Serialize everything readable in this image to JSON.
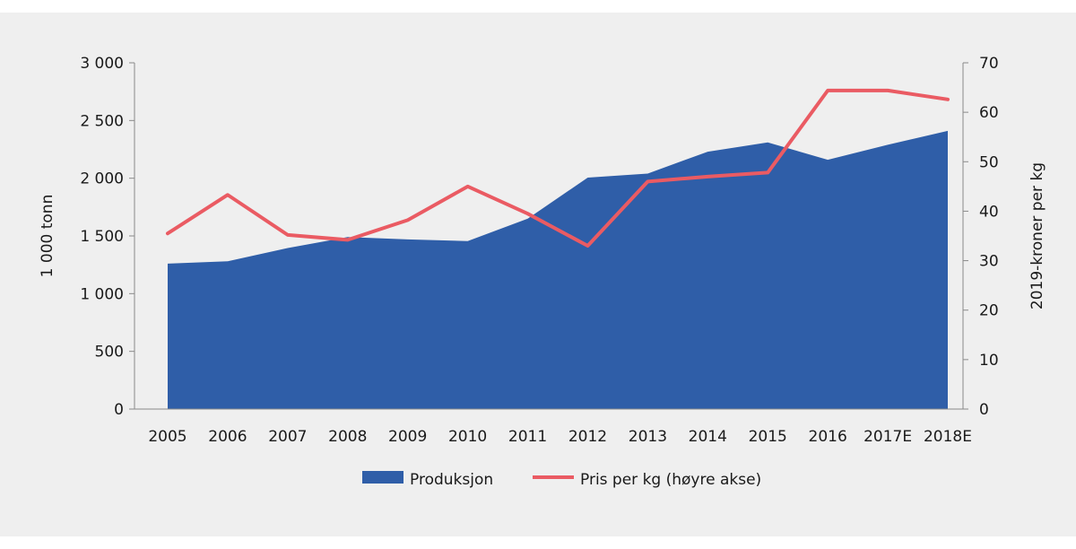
{
  "chart_data": {
    "type": "area",
    "categories": [
      "2005",
      "2006",
      "2007",
      "2008",
      "2009",
      "2010",
      "2011",
      "2012",
      "2013",
      "2014",
      "2015",
      "2016",
      "2017E",
      "2018E"
    ],
    "series": [
      {
        "name": "Produksjon",
        "type": "area",
        "axis": "left",
        "color": "#2f5ea8",
        "values": [
          1260,
          1280,
          1395,
          1490,
          1470,
          1455,
          1650,
          2005,
          2040,
          2230,
          2310,
          2160,
          2290,
          2410
        ]
      },
      {
        "name": "Pris per kg (høyre akse)",
        "type": "line",
        "axis": "right",
        "color": "#ea5b63",
        "values": [
          35.5,
          43.3,
          35.2,
          34.2,
          38.2,
          45.0,
          39.5,
          33.0,
          46.0,
          47.0,
          47.8,
          64.4,
          64.4,
          62.6
        ]
      }
    ],
    "y_left": {
      "label": "1 000 tonn",
      "min": 0,
      "max": 3000,
      "ticks": [
        0,
        500,
        1000,
        1500,
        2000,
        2500,
        3000
      ],
      "tick_labels": [
        "0",
        "500",
        "1 000",
        "1 500",
        "2 000",
        "2 500",
        "3 000"
      ]
    },
    "y_right": {
      "label": "2019-kroner per kg",
      "min": 0,
      "max": 70,
      "ticks": [
        0,
        10,
        20,
        30,
        40,
        50,
        60,
        70
      ],
      "tick_labels": [
        "0",
        "10",
        "20",
        "30",
        "40",
        "50",
        "60",
        "70"
      ]
    },
    "legend_position": "bottom",
    "grid": false
  }
}
